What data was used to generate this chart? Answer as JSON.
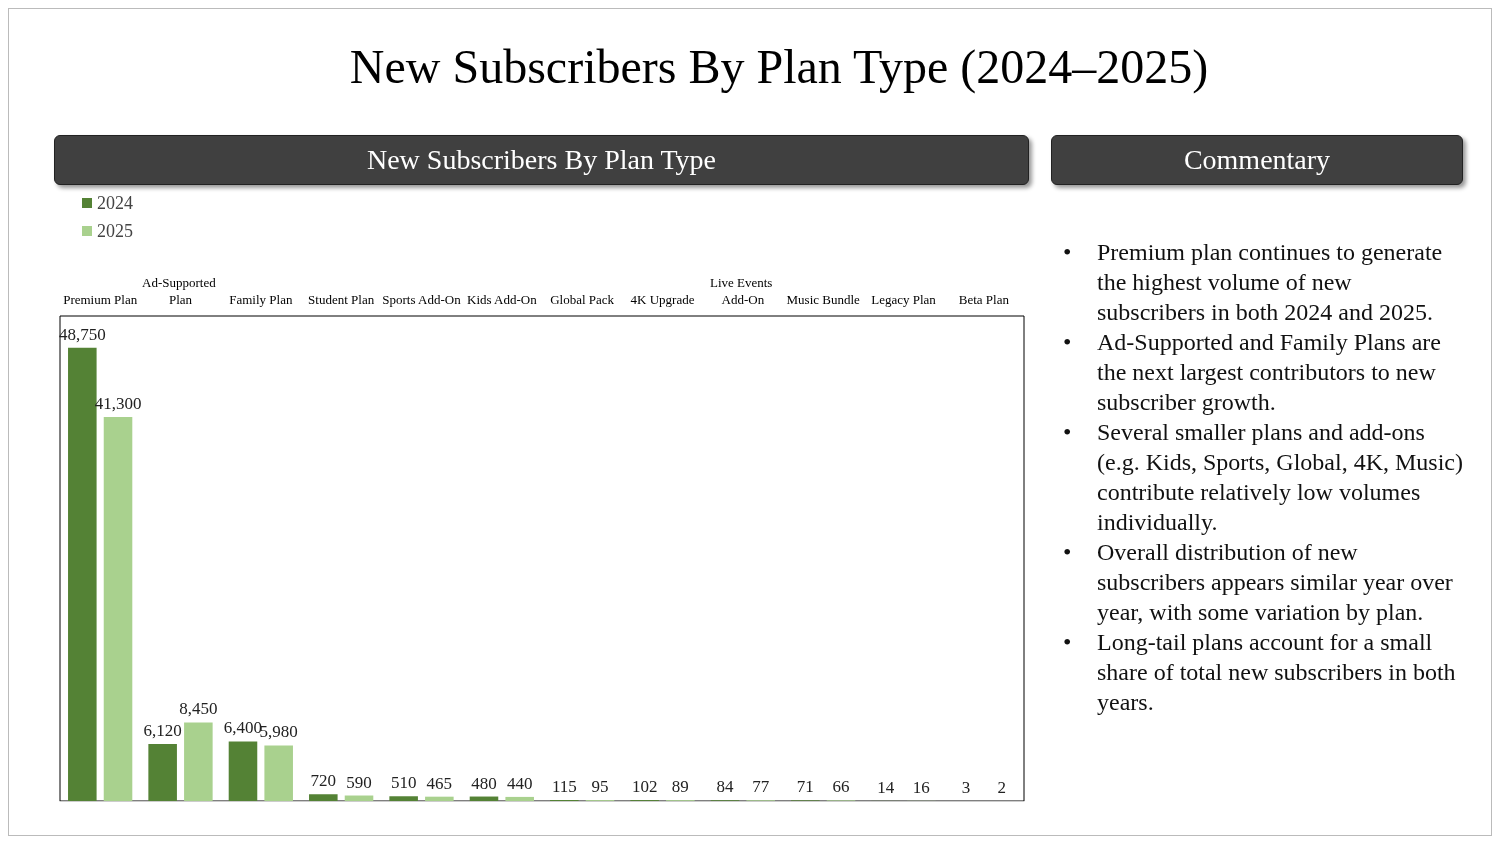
{
  "chart_data": [
    {
      "type": "bar",
      "title": "New Subscribers By Plan Type (2024–2025)",
      "subtitle": "New Subscribers By Plan Type",
      "categories": [
        "Premium Plan",
        "Ad-Supported Plan",
        "Family Plan",
        "Student Plan",
        "Sports Add-On",
        "Kids Add-On",
        "Global Pack",
        "4K Upgrade",
        "Live Events Add-On",
        "Music Bundle",
        "Legacy Plan",
        "Beta Plan"
      ],
      "series": [
        {
          "name": "2024",
          "color": "#548235",
          "values": [
            48750,
            6120,
            6400,
            720,
            510,
            480,
            115,
            102,
            84,
            71,
            14,
            3
          ],
          "value_labels": [
            "48,750",
            "6,120",
            "6,400",
            "720",
            "510",
            "480",
            "115",
            "102",
            "84",
            "71",
            "14",
            "3"
          ]
        },
        {
          "name": "2025",
          "color": "#a9d18e",
          "values": [
            41300,
            8450,
            5980,
            590,
            465,
            440,
            95,
            89,
            77,
            66,
            16,
            2
          ],
          "value_labels": [
            "41,300",
            "8,450",
            "5,980",
            "590",
            "465",
            "440",
            "95",
            "89",
            "77",
            "66",
            "16",
            "2"
          ]
        }
      ],
      "legend": "top left"
    },
    {
      "type": "other",
      "title": "Commentary",
      "annotations": [
        "• Premium plan continues to generate the highest volume of new subscribers in both 2024 and 2025.",
        "• Ad-Supported and Family Plans are the next largest contributors to new subscriber growth.",
        "• Several smaller plans and add-ons (e.g. Kids, Sports, Global, 4K, Music) contribute relatively low volumes individually.",
        "• Overall distribution of new subscribers appears similar year over year, with some variation by plan.",
        "• Long-tail plans account for a small share of total new subscribers in both years."
      ]
    }
  ]
}
